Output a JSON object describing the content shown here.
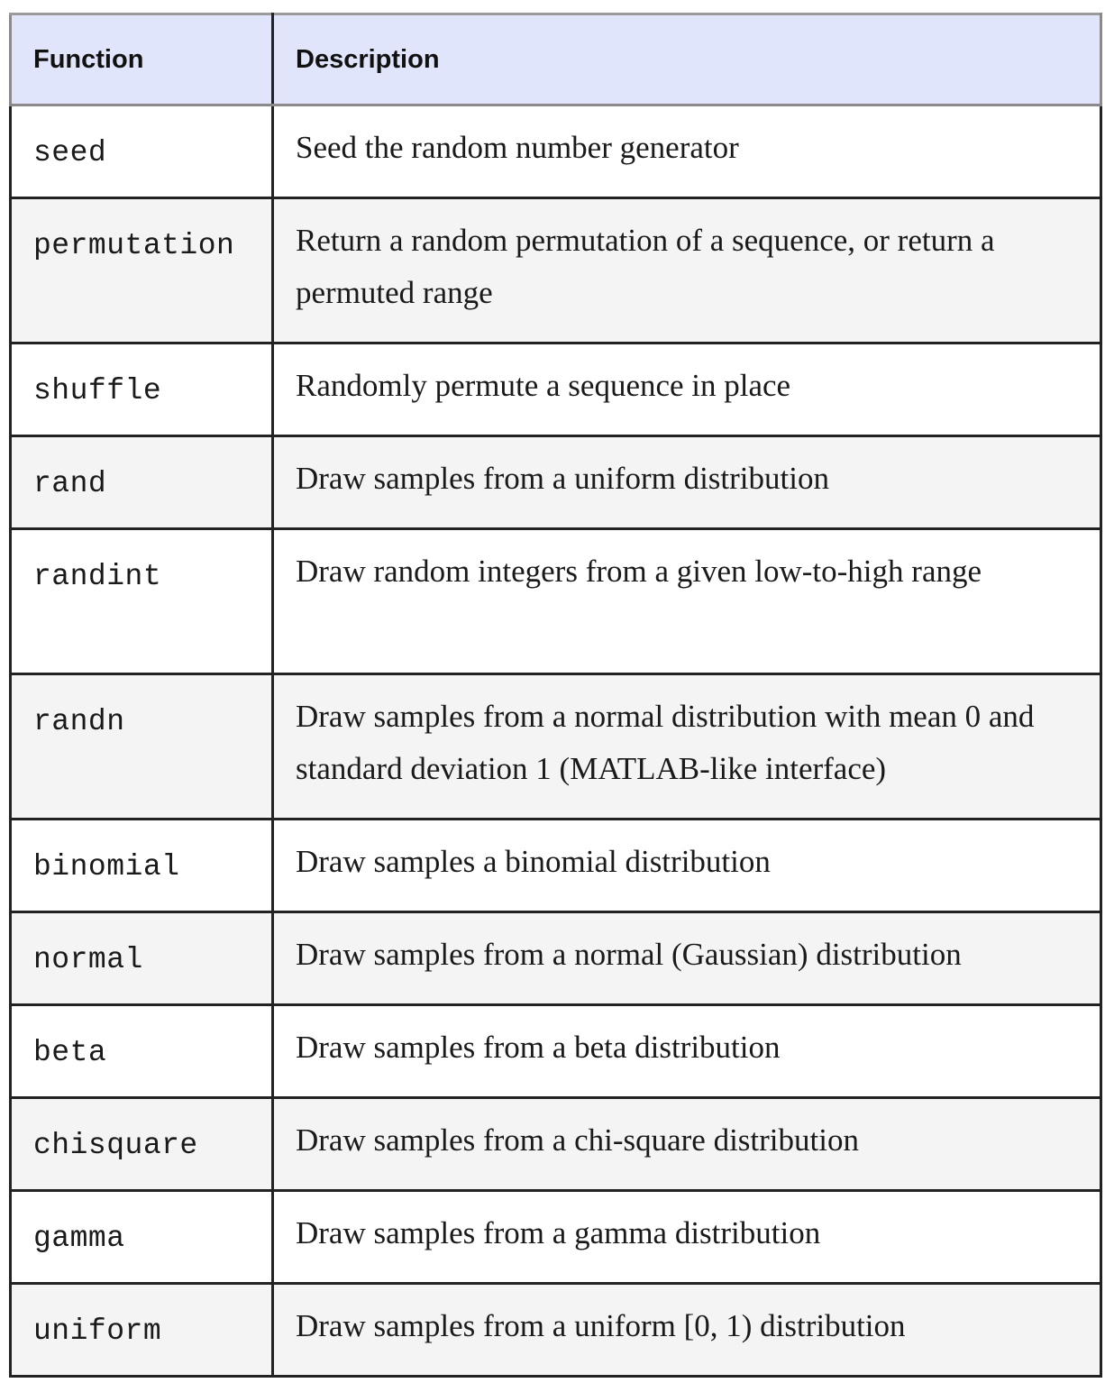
{
  "table": {
    "headers": [
      "Function",
      "Description"
    ],
    "rows": [
      {
        "function": "seed",
        "description": "Seed the random number generator"
      },
      {
        "function": "permutation",
        "description": "Return a random permutation of a sequence, or return a permuted range"
      },
      {
        "function": "shuffle",
        "description": "Randomly permute a sequence in place"
      },
      {
        "function": "rand",
        "description": "Draw samples from a uniform distribution"
      },
      {
        "function": "randint",
        "description": "Draw random integers from a given low-to-high range"
      },
      {
        "function": "randn",
        "description": "Draw samples from a normal distribution with mean 0 and standard deviation 1 (MATLAB-like interface)"
      },
      {
        "function": "binomial",
        "description": "Draw samples a binomial distribution"
      },
      {
        "function": "normal",
        "description": "Draw samples from a normal (Gaussian) distribution"
      },
      {
        "function": "beta",
        "description": "Draw samples from a beta distribution"
      },
      {
        "function": "chisquare",
        "description": "Draw samples from a chi-square distribution"
      },
      {
        "function": "gamma",
        "description": "Draw samples from a gamma distribution"
      },
      {
        "function": "uniform",
        "description": "Draw samples from a uniform [0, 1) distribution"
      }
    ]
  }
}
